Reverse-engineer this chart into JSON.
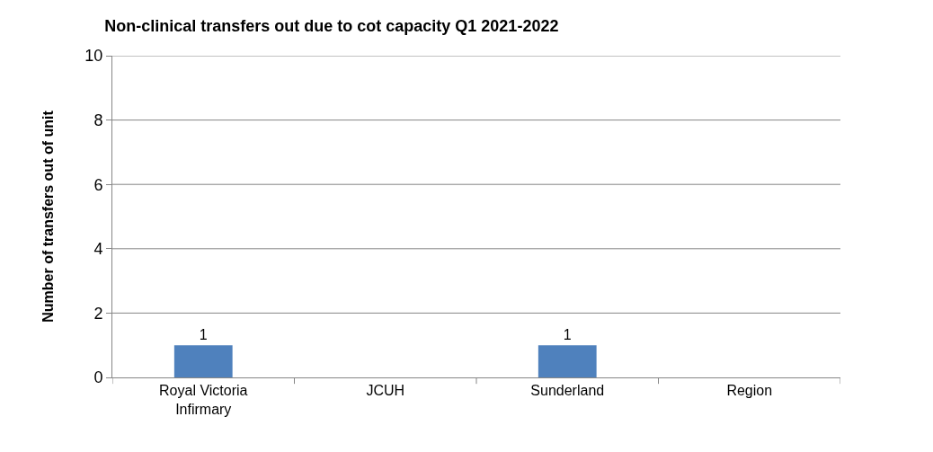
{
  "chart_data": {
    "type": "bar",
    "title": "Non-clinical transfers out due to cot capacity Q1 2021-2022",
    "ylabel": "Number of transfers out of unit",
    "categories": [
      "Royal Victoria Infirmary",
      "JCUH",
      "Sunderland",
      "Region"
    ],
    "values": [
      1,
      0,
      1,
      0
    ],
    "color": "#4f81bd",
    "value_labels": [
      "1",
      null,
      "1",
      null
    ],
    "ylim": [
      0,
      10
    ],
    "yticks": [
      0,
      2,
      4,
      6,
      8,
      10
    ],
    "grid": "y"
  }
}
